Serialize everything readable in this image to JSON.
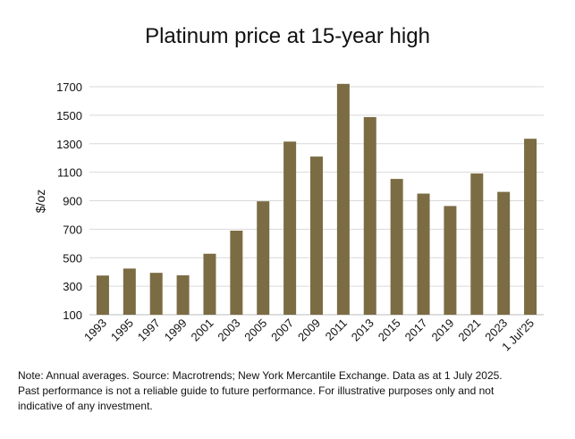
{
  "chart_data": {
    "type": "bar",
    "title": "Platinum price at 15-year high",
    "ylabel": "$/oz",
    "xlabel": "",
    "ylim": [
      100,
      1800
    ],
    "yticks": [
      100,
      300,
      500,
      700,
      900,
      1100,
      1300,
      1500,
      1700
    ],
    "grid": true,
    "bar_color": "#7b6c43",
    "categories": [
      "1993",
      "1995",
      "1997",
      "1999",
      "2001",
      "2003",
      "2005",
      "2007",
      "2009",
      "2011",
      "2013",
      "2015",
      "2017",
      "2019",
      "2021",
      "2023",
      "1 Jul'25"
    ],
    "values": [
      375,
      424,
      394,
      377,
      528,
      690,
      896,
      1315,
      1210,
      1720,
      1487,
      1053,
      950,
      863,
      1091,
      962,
      1335
    ]
  },
  "footnote": {
    "line1": "Note: Annual averages. Source: Macrotrends; New York Mercantile Exchange. Data as at 1 July 2025.",
    "line2": "Past performance is not a reliable guide to future performance. For illustrative purposes only and not",
    "line3": "indicative of any investment."
  }
}
